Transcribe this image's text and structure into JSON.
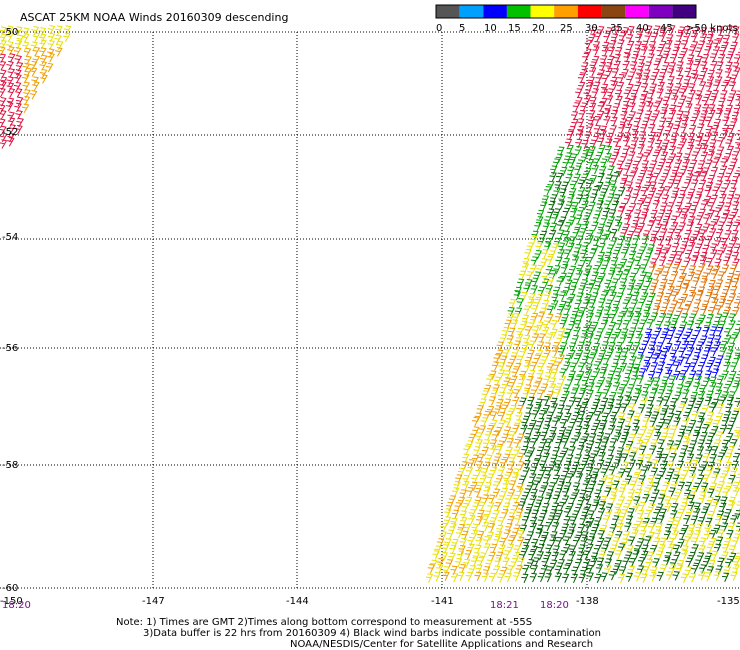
{
  "title": "ASCAT 25KM NOAA Winds 20160309 descending",
  "colorbar": {
    "colors": [
      "#555555",
      "#00a0ff",
      "#0000ff",
      "#00c000",
      "#ffff00",
      "#ffa000",
      "#ff0000",
      "#8b4513",
      "#ff00ff",
      "#8000c0",
      "#400080"
    ],
    "labels": [
      "0",
      "5",
      "10",
      "15",
      "20",
      "25",
      "30",
      "35",
      "40",
      "45",
      ">50 knots"
    ]
  },
  "lat_labels": [
    "-50",
    "-52",
    "-54",
    "-56",
    "-58",
    "-60"
  ],
  "lon_labels": [
    "-150",
    "-147",
    "-144",
    "-141",
    "-138",
    "-135"
  ],
  "time_labels": [
    "18:20",
    "18:21",
    "18:20"
  ],
  "notes": [
    "Note: 1) Times are GMT 2)Times along bottom correspond to measurement at -55S",
    "3)Data buffer is 22 hrs from 20160309 4) Black wind barbs indicate possible contamination",
    "NOAA/NESDIS/Center for Satellite Applications and Research"
  ],
  "wind_colors": {
    "yellow": "#e8e000",
    "orange": "#f0a000",
    "red": "#e01040",
    "green": "#00a000",
    "blue": "#0000ff",
    "darkorange": "#e07000",
    "darkgreen": "#006000"
  }
}
